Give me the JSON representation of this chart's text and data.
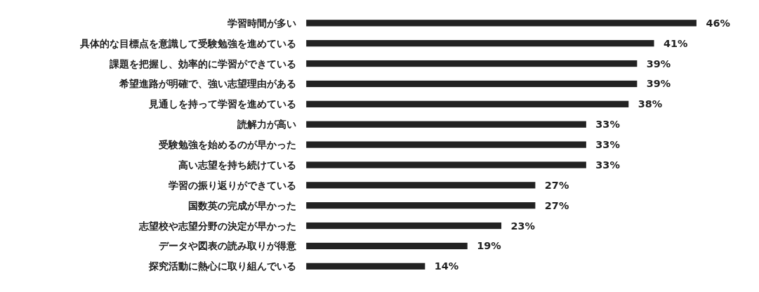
{
  "chart_data": {
    "type": "bar",
    "orientation": "horizontal",
    "categories": [
      "学習時間が多い",
      "具体的な目標点を意識して受験勉強を進めている",
      "課題を把握し、効率的に学習ができている",
      "希望進路が明確で、強い志望理由がある",
      "見通しを持って学習を進めている",
      "読解力が高い",
      "受験勉強を始めるのが早かった",
      "高い志望を持ち続けている",
      "学習の振り返りができている",
      "国数英の完成が早かった",
      "志望校や志望分野の決定が早かった",
      "データや図表の読み取りが得意",
      "探究活動に熱心に取り組んでいる"
    ],
    "values": [
      46,
      41,
      39,
      39,
      38,
      33,
      33,
      33,
      27,
      27,
      23,
      19,
      14
    ],
    "value_labels": [
      "46%",
      "41%",
      "39%",
      "39%",
      "38%",
      "33%",
      "33%",
      "33%",
      "27%",
      "27%",
      "23%",
      "19%",
      "14%"
    ],
    "color": "#222222"
  }
}
